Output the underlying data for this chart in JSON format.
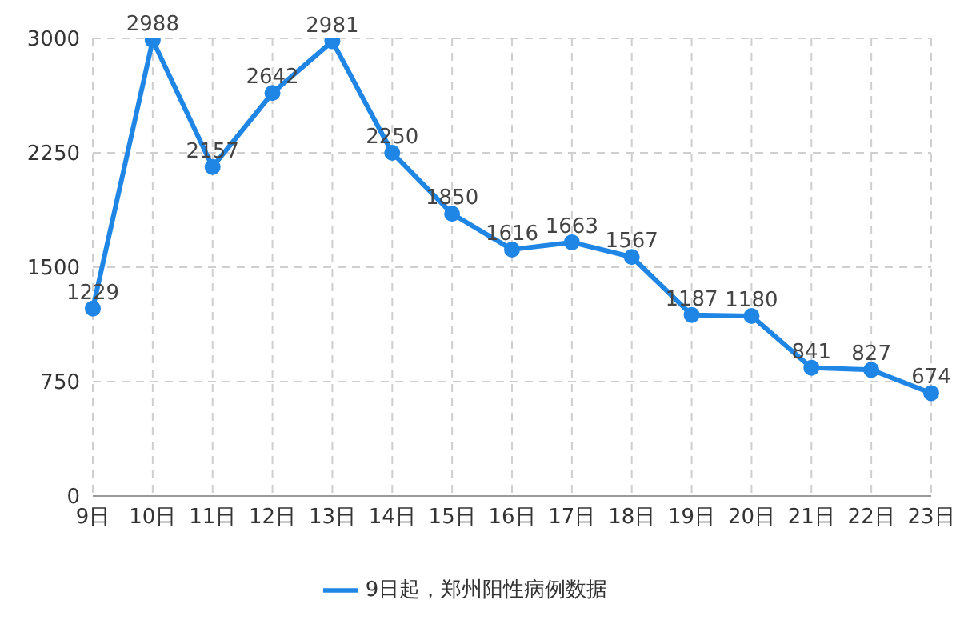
{
  "chart_data": {
    "type": "line",
    "categories": [
      "9日",
      "10日",
      "11日",
      "12日",
      "13日",
      "14日",
      "15日",
      "16日",
      "17日",
      "18日",
      "19日",
      "20日",
      "21日",
      "22日",
      "23日"
    ],
    "series": [
      {
        "name": "9日起，郑州阳性病例数据",
        "color": "#1f86e6",
        "values": [
          1229,
          2988,
          2157,
          2642,
          2981,
          2250,
          1850,
          1616,
          1663,
          1567,
          1187,
          1180,
          841,
          827,
          674
        ]
      }
    ],
    "ylim": [
      0,
      3000
    ],
    "yticks": [
      0,
      750,
      1500,
      2250,
      3000
    ],
    "grid": true,
    "legend": "bottom",
    "marker": "circle",
    "line_style": "solid",
    "data_labels": true
  }
}
